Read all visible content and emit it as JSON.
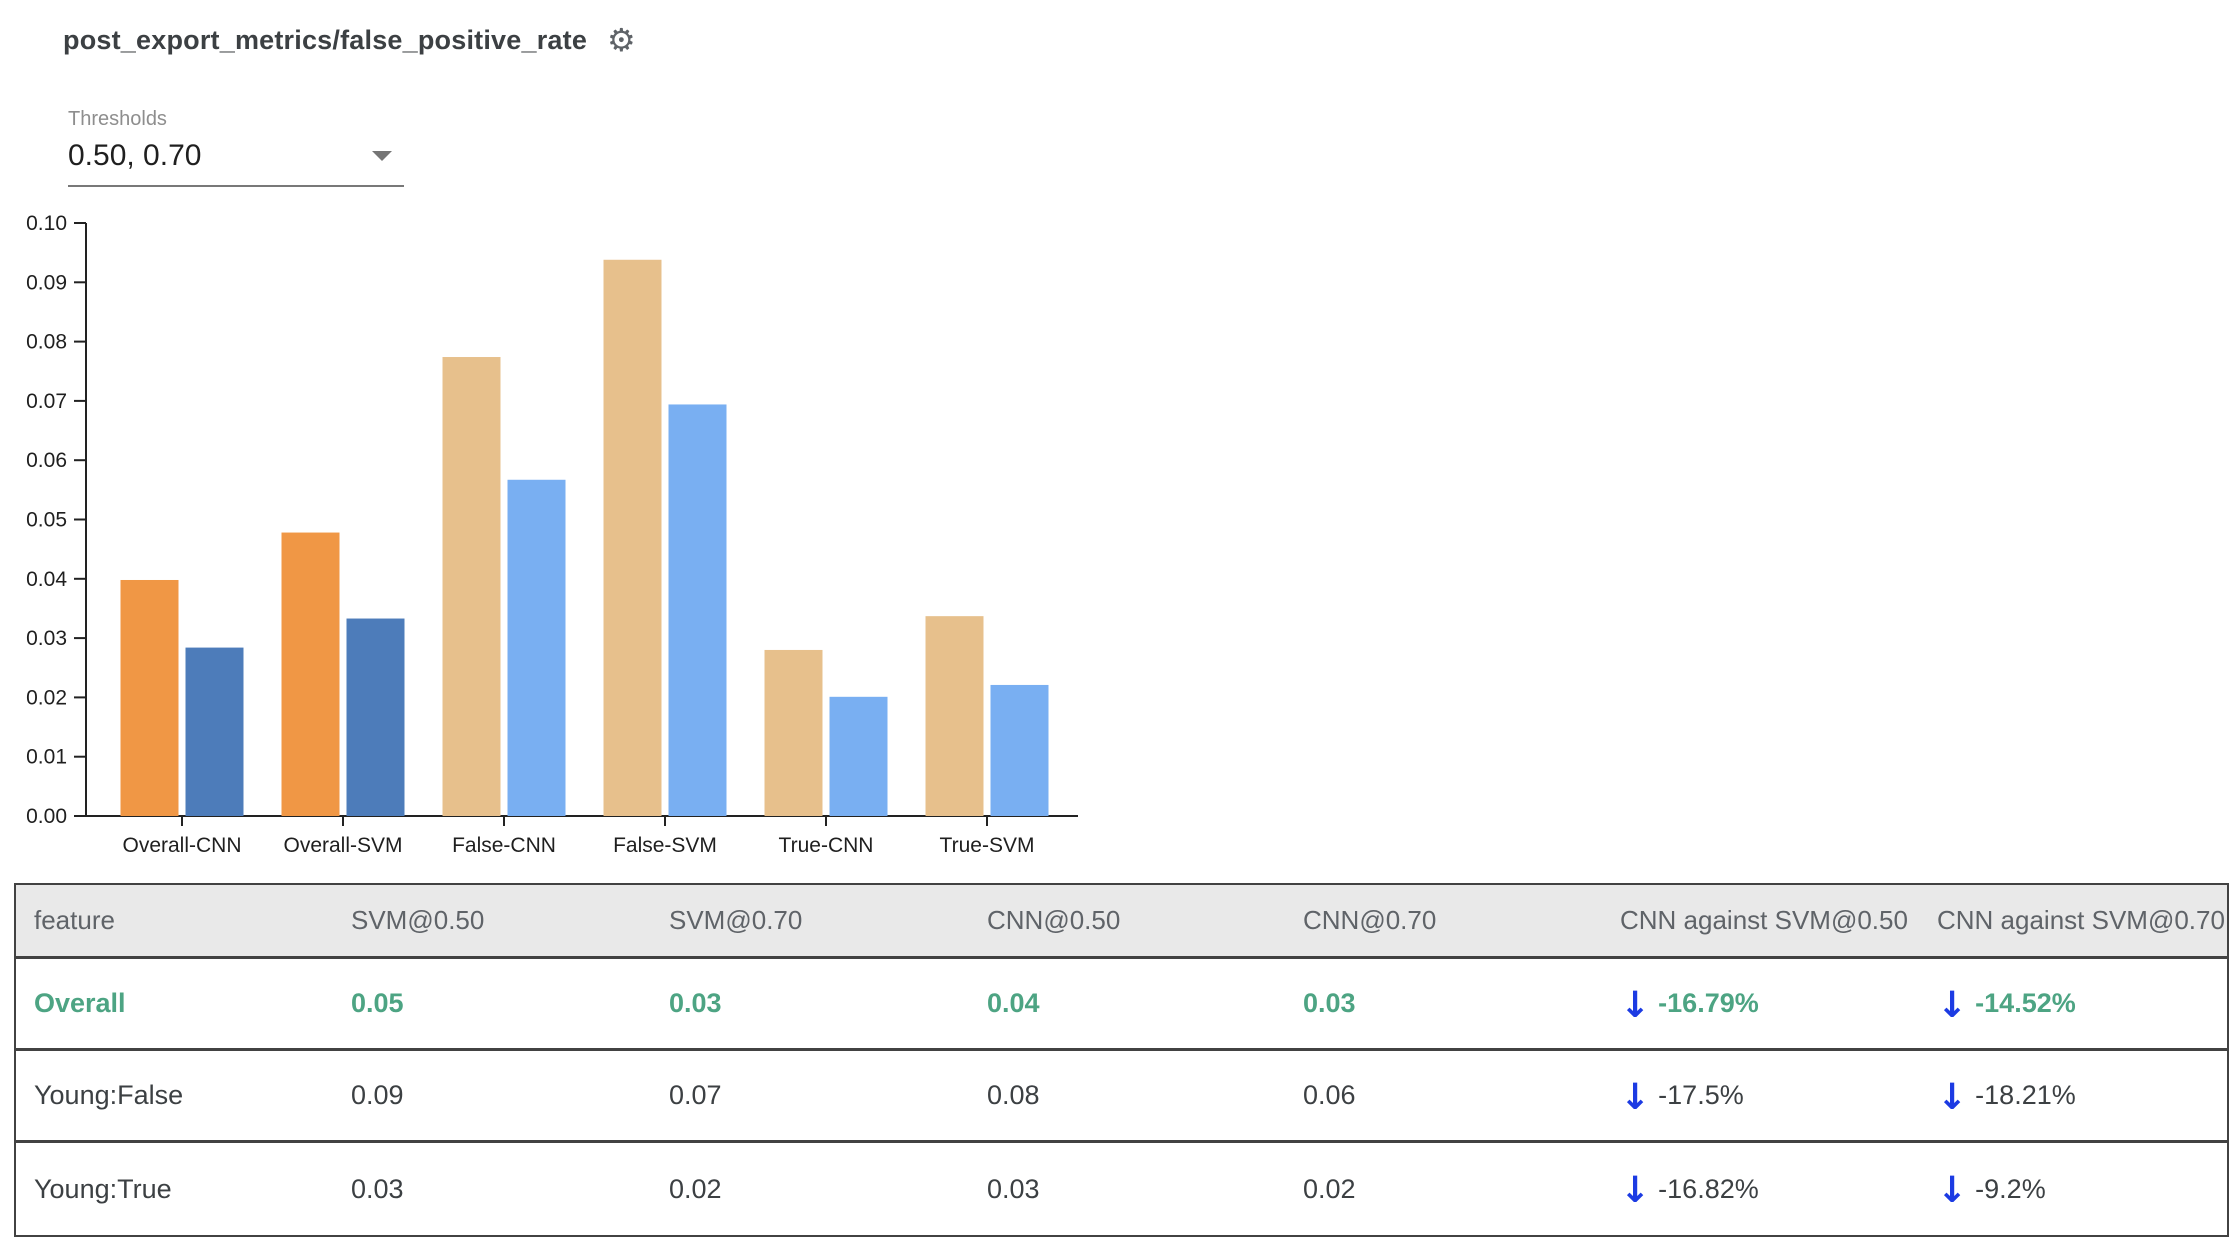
{
  "header": {
    "title": "post_export_metrics/false_positive_rate",
    "settings_icon": "gear-icon"
  },
  "controls": {
    "thresholds_label": "Thresholds",
    "thresholds_value": "0.50, 0.70",
    "dropdown_icon": "chevron-down-icon"
  },
  "colors": {
    "bar_orange_highlight": "#F09745",
    "bar_blue_highlight": "#4D7CBA",
    "bar_tan": "#E7C08C",
    "bar_lightblue": "#79AFF2",
    "accent_green": "#4DA483",
    "arrow_blue": "#1C3BE3",
    "header_bg": "#E9E9E9",
    "table_border": "#424242"
  },
  "chart_data": {
    "type": "bar",
    "title": "",
    "xlabel": "",
    "ylabel": "",
    "categories": [
      "Overall-CNN",
      "Overall-SVM",
      "False-CNN",
      "False-SVM",
      "True-CNN",
      "True-SVM"
    ],
    "highlight": [
      true,
      true,
      false,
      false,
      false,
      false
    ],
    "series": [
      {
        "name": "threshold 0.50",
        "values": [
          0.0398,
          0.0478,
          0.0774,
          0.0938,
          0.028,
          0.0337
        ]
      },
      {
        "name": "threshold 0.70",
        "values": [
          0.0284,
          0.0333,
          0.0567,
          0.0694,
          0.0201,
          0.0221
        ]
      }
    ],
    "series_colors": {
      "normal": [
        "#E7C08C",
        "#79AFF2"
      ],
      "highlight": [
        "#F09745",
        "#4D7CBA"
      ]
    },
    "ylim": [
      0,
      0.1
    ],
    "ytick_step": 0.01,
    "grid": false,
    "legend": "none"
  },
  "table": {
    "columns": [
      "feature",
      "SVM@0.50",
      "SVM@0.70",
      "CNN@0.50",
      "CNN@0.70",
      "CNN against SVM@0.50",
      "CNN against SVM@0.70"
    ],
    "rows": [
      {
        "feature": "Overall",
        "values": [
          "0.05",
          "0.03",
          "0.04",
          "0.03"
        ],
        "deltas": [
          "-16.79%",
          "-14.52%"
        ],
        "delta_icons": [
          "arrow-down-icon",
          "arrow-down-icon"
        ],
        "highlight": true
      },
      {
        "feature": "Young:False",
        "values": [
          "0.09",
          "0.07",
          "0.08",
          "0.06"
        ],
        "deltas": [
          "-17.5%",
          "-18.21%"
        ],
        "delta_icons": [
          "arrow-down-icon",
          "arrow-down-icon"
        ],
        "highlight": false
      },
      {
        "feature": "Young:True",
        "values": [
          "0.03",
          "0.02",
          "0.03",
          "0.02"
        ],
        "deltas": [
          "-16.82%",
          "-9.2%"
        ],
        "delta_icons": [
          "arrow-down-icon",
          "arrow-down-icon"
        ],
        "highlight": false
      }
    ]
  }
}
